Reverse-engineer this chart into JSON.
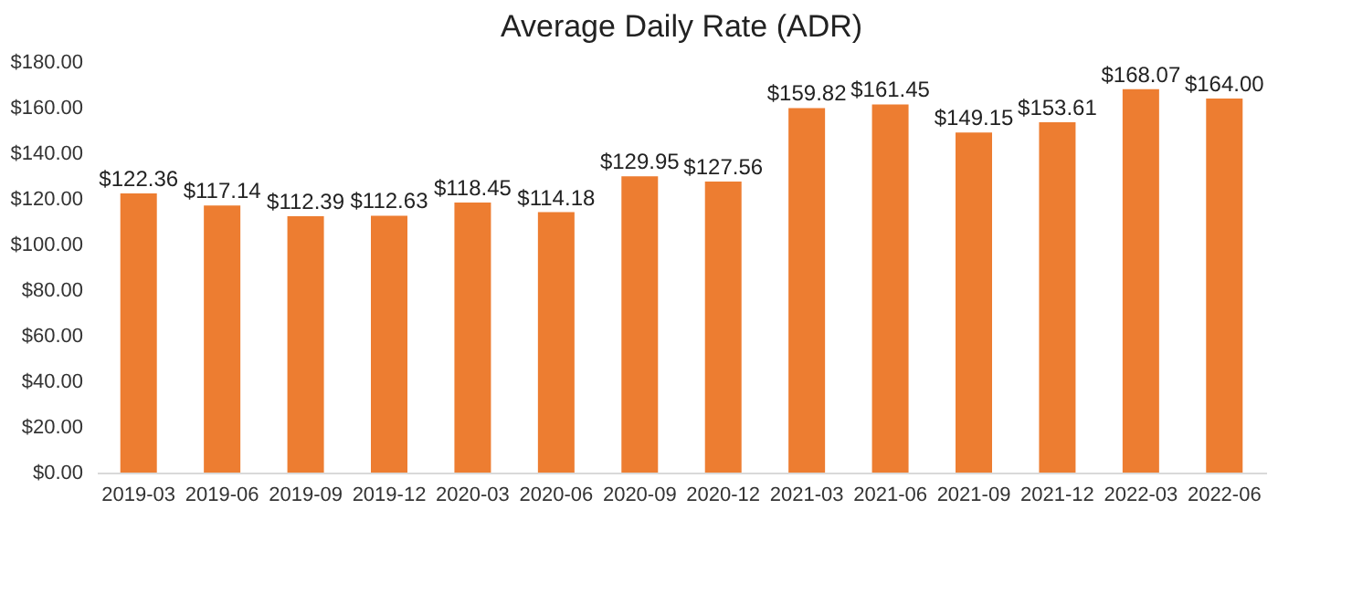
{
  "chart_data": {
    "type": "bar",
    "title": "Average Daily Rate (ADR)",
    "categories": [
      "2019-03",
      "2019-06",
      "2019-09",
      "2019-12",
      "2020-03",
      "2020-06",
      "2020-09",
      "2020-12",
      "2021-03",
      "2021-06",
      "2021-09",
      "2021-12",
      "2022-03",
      "2022-06"
    ],
    "values": [
      122.36,
      117.14,
      112.39,
      112.63,
      118.45,
      114.18,
      129.95,
      127.56,
      159.82,
      161.45,
      149.15,
      153.61,
      168.07,
      164.0
    ],
    "value_labels": [
      "$122.36",
      "$117.14",
      "$112.39",
      "$112.63",
      "$118.45",
      "$114.18",
      "$129.95",
      "$127.56",
      "$159.82",
      "$161.45",
      "$149.15",
      "$153.61",
      "$168.07",
      "$164.00"
    ],
    "color": "#ed7d31",
    "ylim": [
      0,
      180
    ],
    "yticks": [
      {
        "value": 0,
        "label": "$0.00"
      },
      {
        "value": 20,
        "label": "$20.00"
      },
      {
        "value": 40,
        "label": "$40.00"
      },
      {
        "value": 60,
        "label": "$60.00"
      },
      {
        "value": 80,
        "label": "$80.00"
      },
      {
        "value": 100,
        "label": "$100.00"
      },
      {
        "value": 120,
        "label": "$120.00"
      },
      {
        "value": 140,
        "label": "$140.00"
      },
      {
        "value": 160,
        "label": "$160.00"
      },
      {
        "value": 180,
        "label": "$180.00"
      }
    ],
    "grid": false
  }
}
